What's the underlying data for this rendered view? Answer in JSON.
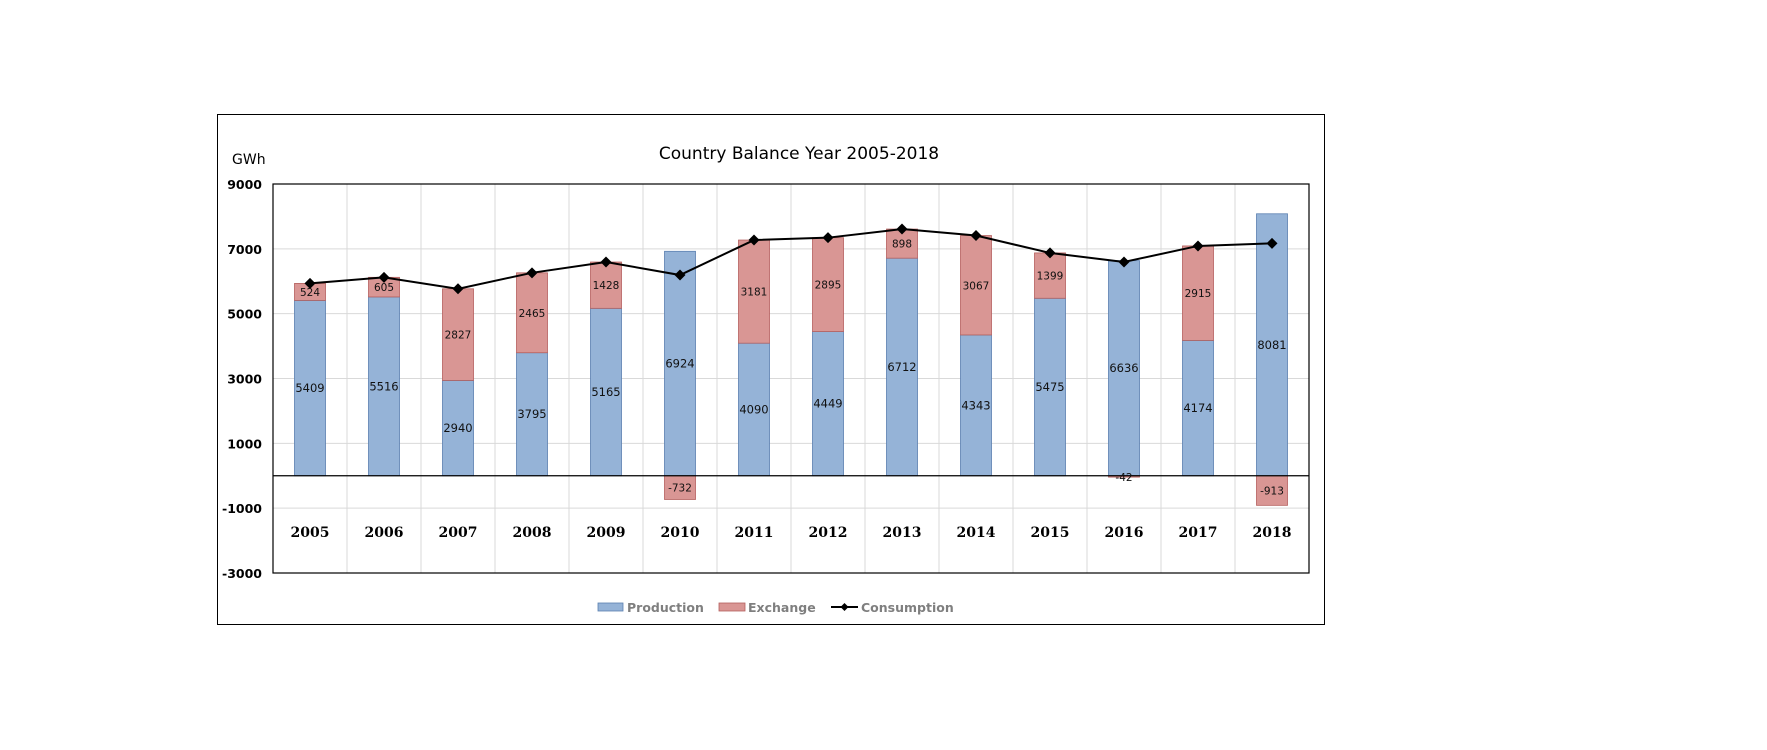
{
  "chart_data": {
    "type": "bar",
    "stacked": true,
    "title": "Country Balance Year 2005-2018",
    "ylabel": "GWh",
    "xlabel": "",
    "ylim": [
      -3000,
      9000
    ],
    "yticks": [
      9000,
      7000,
      5000,
      3000,
      1000,
      -1000,
      -3000
    ],
    "grid": true,
    "legend_position": "bottom",
    "categories": [
      "2005",
      "2006",
      "2007",
      "2008",
      "2009",
      "2010",
      "2011",
      "2012",
      "2013",
      "2014",
      "2015",
      "2016",
      "2017",
      "2018"
    ],
    "series": [
      {
        "name": "Production",
        "type": "bar",
        "color": "#95b3d7",
        "border": "#5a7fb0",
        "values": [
          5409,
          5516,
          2940,
          3795,
          5165,
          6924,
          4090,
          4449,
          6712,
          4343,
          5475,
          6636,
          4174,
          8081
        ],
        "labels": [
          "5409",
          "5516",
          "2940",
          "3795",
          "5165",
          "6924",
          "4090",
          "4449",
          "6712",
          "4343",
          "5475",
          "6636",
          "4174",
          "8081"
        ]
      },
      {
        "name": "Exchange",
        "type": "bar",
        "color": "#d99694",
        "border": "#b5605e",
        "values": [
          524,
          605,
          2827,
          2465,
          1428,
          -732,
          3181,
          2895,
          898,
          3067,
          1399,
          -42,
          2915,
          -913
        ],
        "labels": [
          "524",
          "605",
          "2827",
          "2465",
          "1428",
          "-732",
          "3181",
          "2895",
          "898",
          "3067",
          "1399",
          "-42",
          "2915",
          "-913"
        ]
      },
      {
        "name": "Consumption",
        "type": "line",
        "color": "#000000",
        "marker": "diamond",
        "values": [
          5933,
          6121,
          5767,
          6260,
          6593,
          6192,
          7271,
          7344,
          7610,
          7410,
          6874,
          6594,
          7089,
          7168
        ]
      }
    ]
  }
}
